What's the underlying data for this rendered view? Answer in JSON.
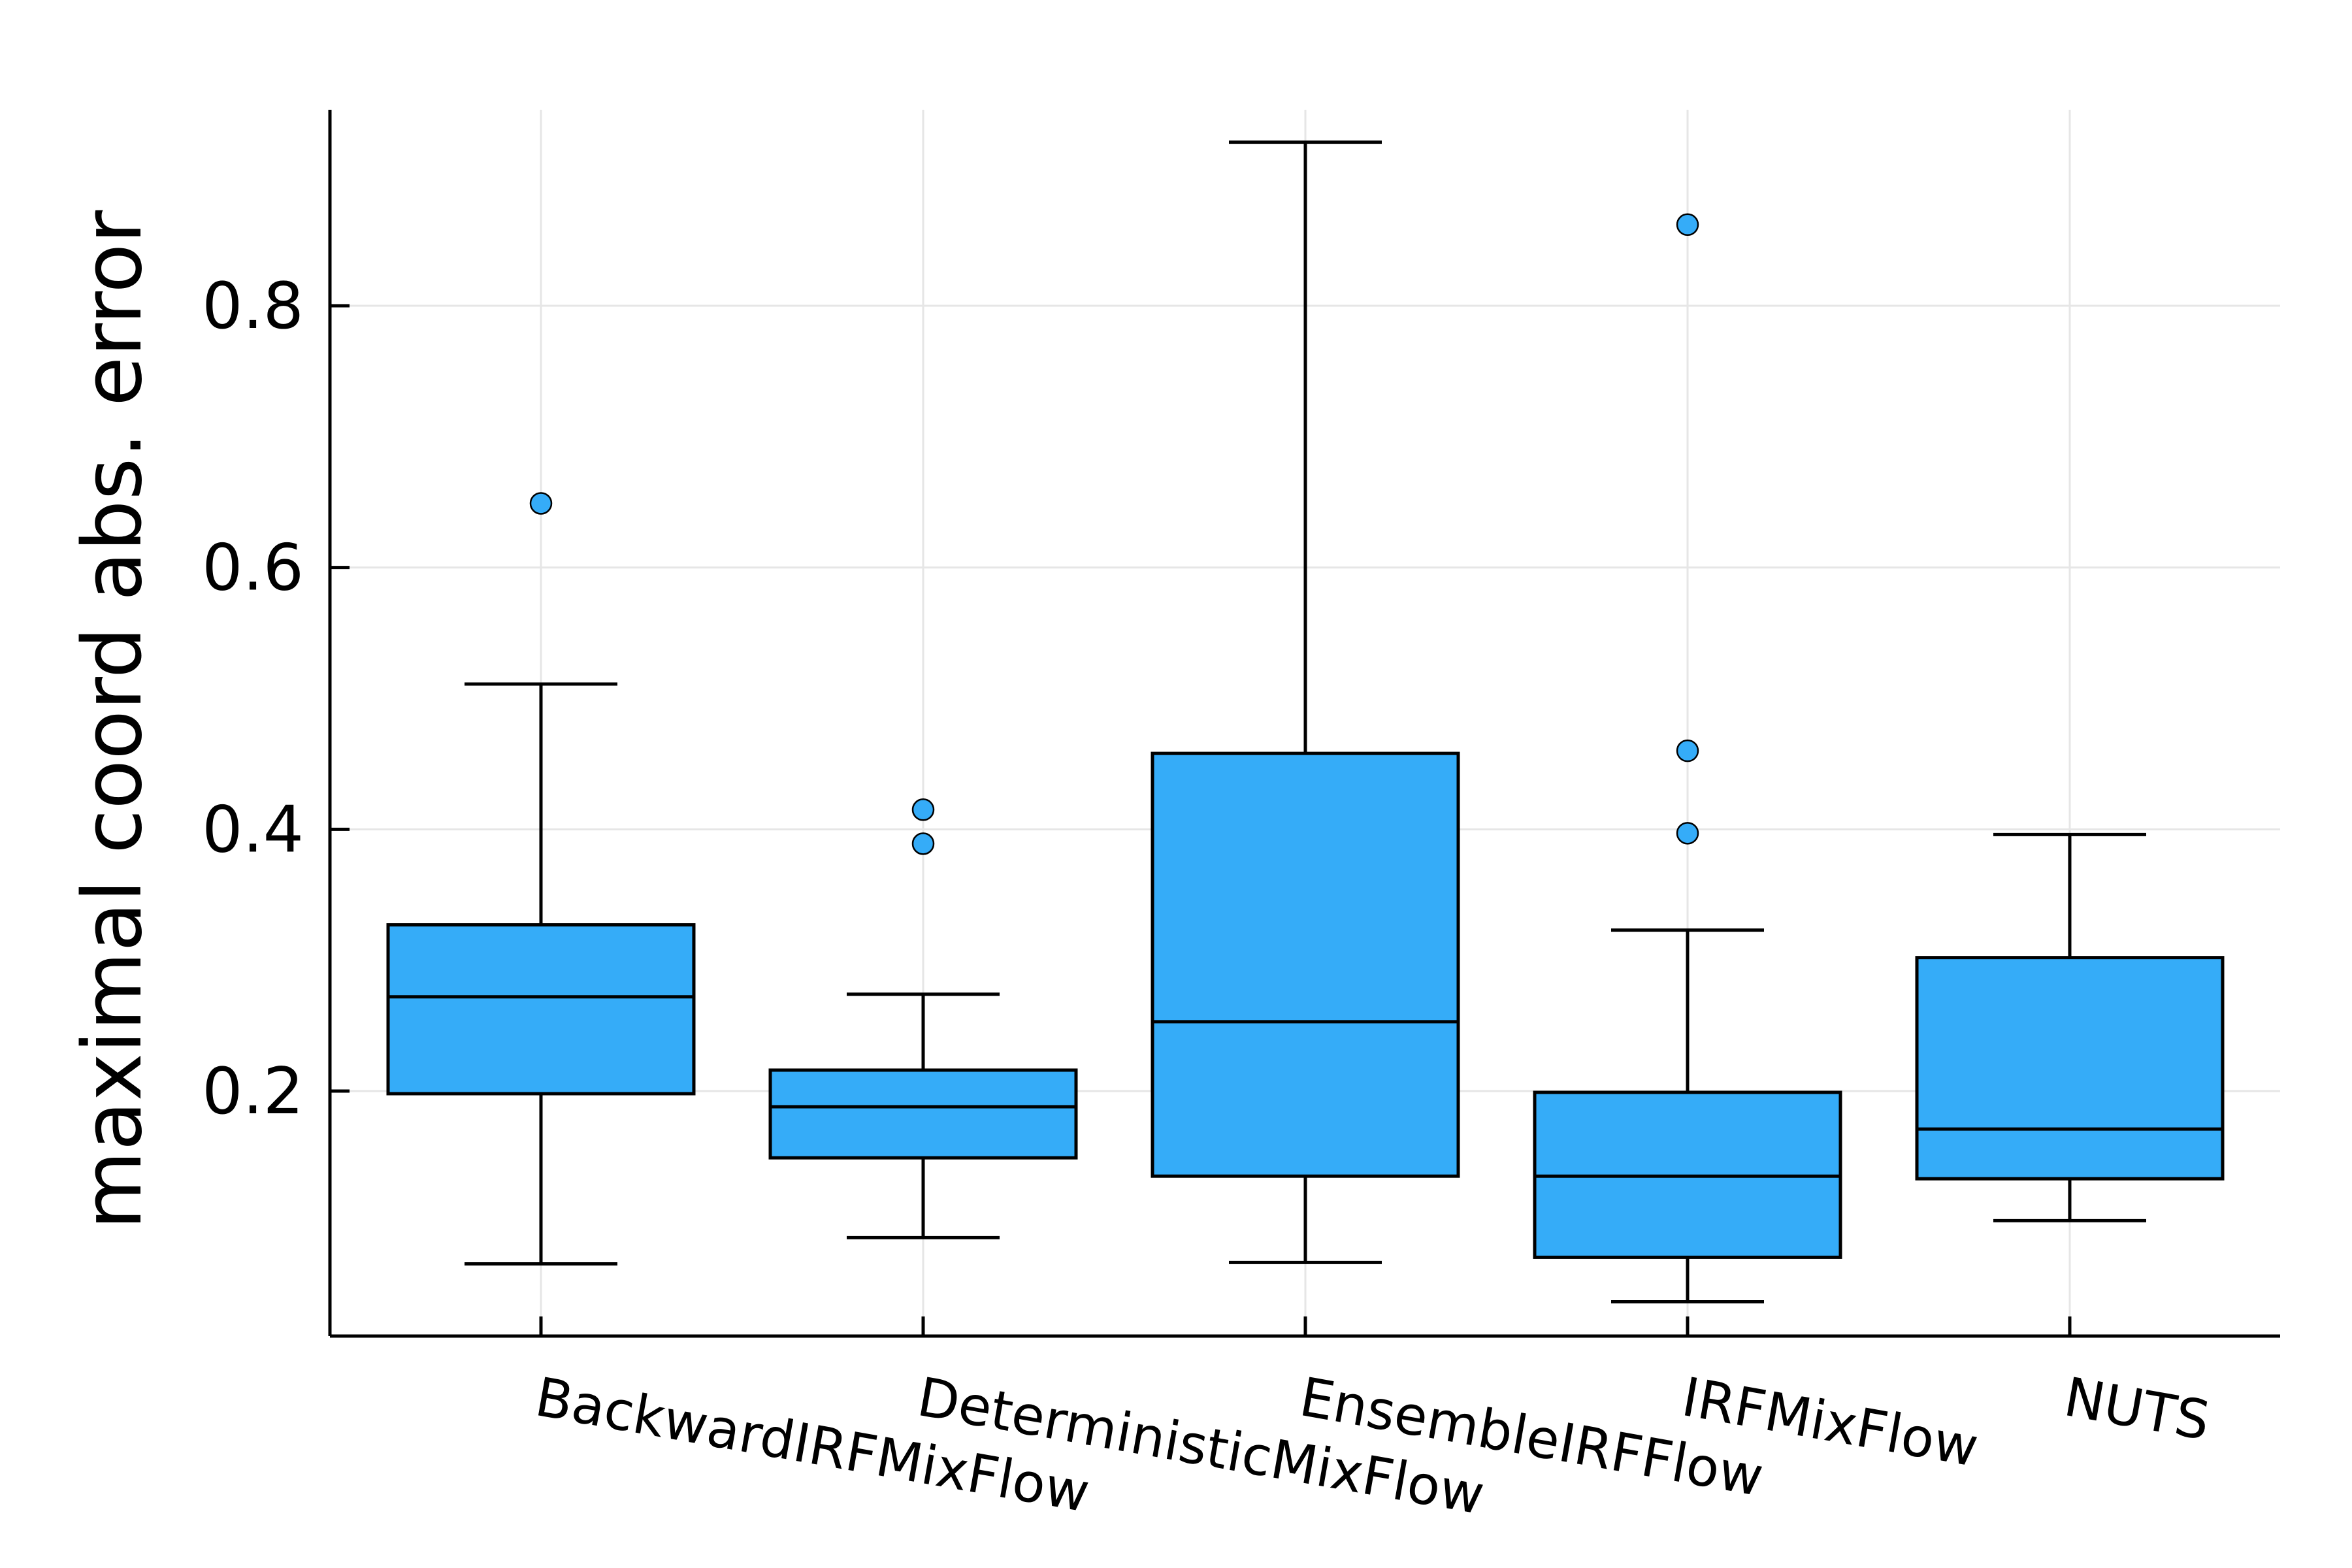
{
  "chart_data": {
    "type": "box",
    "title": "",
    "xlabel": "",
    "ylabel": "maximal coord abs. error",
    "ylim": [
      0.0,
      0.93
    ],
    "yticks": [
      0.2,
      0.4,
      0.6,
      0.8
    ],
    "ytick_labels": [
      "0.2",
      "0.4",
      "0.6",
      "0.8"
    ],
    "grid": true,
    "legend": "none",
    "colors": {
      "box_fill": "#35acf8",
      "outline": "#000000",
      "grid": "#e6e6e6"
    },
    "categories": [
      "BackwardIRFMixFlow",
      "DeterministicMixFlow",
      "EnsembleIRFFlow",
      "IRFMixFlow",
      "NUTS"
    ],
    "boxes": [
      {
        "category": "BackwardIRFMixFlow",
        "whisker_low": 0.068,
        "q1": 0.198,
        "median": 0.272,
        "q3": 0.327,
        "whisker_high": 0.511,
        "outliers": [
          0.649
        ]
      },
      {
        "category": "DeterministicMixFlow",
        "whisker_low": 0.088,
        "q1": 0.149,
        "median": 0.188,
        "q3": 0.216,
        "whisker_high": 0.274,
        "outliers": [
          0.415,
          0.389
        ]
      },
      {
        "category": "EnsembleIRFFlow",
        "whisker_low": 0.069,
        "q1": 0.135,
        "median": 0.253,
        "q3": 0.458,
        "whisker_high": 0.925,
        "outliers": []
      },
      {
        "category": "IRFMixFlow",
        "whisker_low": 0.039,
        "q1": 0.073,
        "median": 0.135,
        "q3": 0.199,
        "whisker_high": 0.323,
        "outliers": [
          0.862,
          0.46,
          0.397
        ]
      },
      {
        "category": "NUTS",
        "whisker_low": 0.101,
        "q1": 0.133,
        "median": 0.171,
        "q3": 0.302,
        "whisker_high": 0.396,
        "outliers": []
      }
    ]
  }
}
